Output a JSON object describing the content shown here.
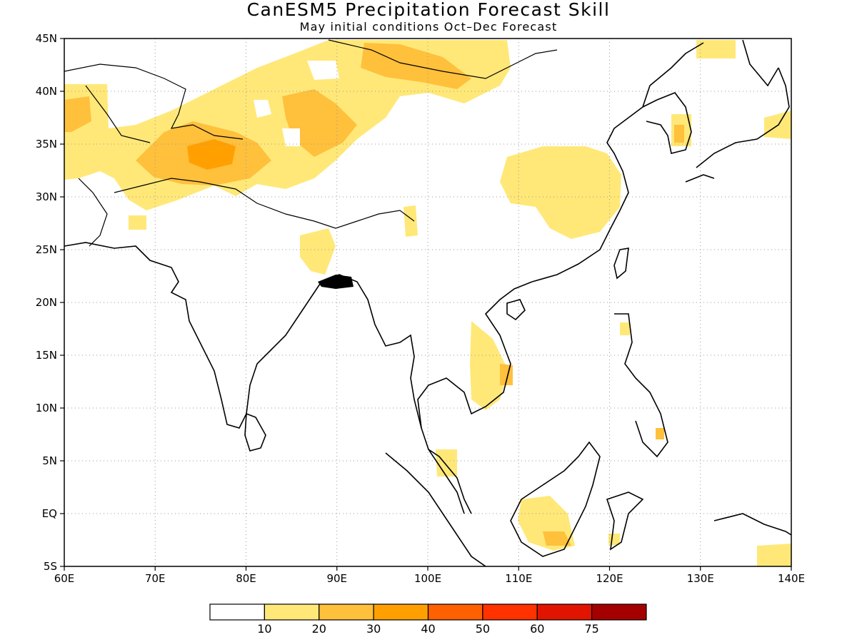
{
  "title": "CanESM5 Precipitation Forecast Skill",
  "subtitle": "May initial conditions  Oct–Dec Forecast",
  "map": {
    "lon_range": [
      60,
      140
    ],
    "lat_range": [
      -5,
      45
    ],
    "lon_ticks": [
      {
        "v": 60,
        "label": "60E"
      },
      {
        "v": 70,
        "label": "70E"
      },
      {
        "v": 80,
        "label": "80E"
      },
      {
        "v": 90,
        "label": "90E"
      },
      {
        "v": 100,
        "label": "100E"
      },
      {
        "v": 110,
        "label": "110E"
      },
      {
        "v": 120,
        "label": "120E"
      },
      {
        "v": 130,
        "label": "130E"
      },
      {
        "v": 140,
        "label": "140E"
      }
    ],
    "lat_ticks": [
      {
        "v": 45,
        "label": "45N"
      },
      {
        "v": 40,
        "label": "40N"
      },
      {
        "v": 35,
        "label": "35N"
      },
      {
        "v": 30,
        "label": "30N"
      },
      {
        "v": 25,
        "label": "25N"
      },
      {
        "v": 20,
        "label": "20N"
      },
      {
        "v": 15,
        "label": "15N"
      },
      {
        "v": 10,
        "label": "10N"
      },
      {
        "v": 5,
        "label": "5N"
      },
      {
        "v": 0,
        "label": "EQ"
      },
      {
        "v": -5,
        "label": "5S"
      }
    ],
    "grid": true,
    "colors": {
      "lt10": "#ffffff",
      "c10_20": "#ffe878",
      "c20_30": "#ffc03c",
      "c30_40": "#ffa000",
      "coast": "#000000"
    }
  },
  "colorbar": {
    "colors": [
      "#ffffff",
      "#ffe878",
      "#ffc03c",
      "#ffa000",
      "#ff6000",
      "#ff3200",
      "#e11400",
      "#a50000"
    ],
    "labels": [
      "10",
      "20",
      "30",
      "40",
      "50",
      "60",
      "75"
    ]
  }
}
